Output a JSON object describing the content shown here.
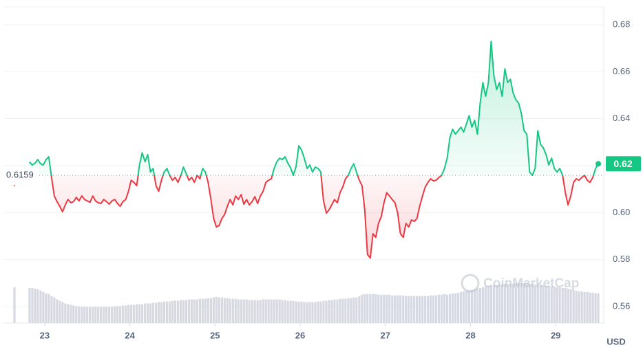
{
  "chart_data": {
    "type": "line",
    "x": [
      22.645,
      null,
      22.823,
      22.855,
      22.887,
      22.919,
      22.952,
      22.984,
      23.016,
      23.048,
      23.081,
      23.113,
      23.145,
      23.177,
      23.21,
      23.242,
      23.274,
      23.307,
      23.339,
      23.371,
      23.403,
      23.436,
      23.468,
      23.5,
      23.532,
      23.565,
      23.597,
      23.629,
      23.661,
      23.694,
      23.726,
      23.758,
      23.79,
      23.823,
      23.855,
      23.887,
      23.919,
      23.952,
      23.984,
      24.016,
      24.048,
      24.081,
      24.113,
      24.145,
      24.178,
      24.21,
      24.242,
      24.274,
      24.307,
      24.339,
      24.371,
      24.403,
      24.436,
      24.468,
      24.5,
      24.532,
      24.565,
      24.597,
      24.629,
      24.661,
      24.694,
      24.726,
      24.758,
      24.79,
      24.823,
      24.855,
      24.887,
      24.919,
      24.952,
      24.984,
      25.016,
      25.048,
      25.081,
      25.113,
      25.145,
      25.177,
      25.21,
      25.242,
      25.274,
      25.307,
      25.339,
      25.371,
      25.403,
      25.436,
      25.468,
      25.5,
      25.532,
      25.565,
      25.597,
      25.629,
      25.661,
      25.694,
      25.726,
      25.758,
      25.79,
      25.823,
      25.855,
      25.887,
      25.919,
      25.952,
      25.984,
      26.016,
      26.048,
      26.081,
      26.113,
      26.145,
      26.177,
      26.21,
      26.242,
      26.274,
      26.307,
      26.339,
      26.371,
      26.403,
      26.436,
      26.468,
      26.5,
      26.532,
      26.565,
      26.597,
      26.629,
      26.661,
      26.694,
      26.726,
      26.758,
      26.79,
      26.823,
      26.855,
      26.887,
      26.919,
      26.952,
      26.984,
      27.016,
      27.048,
      27.081,
      27.113,
      27.145,
      27.177,
      27.21,
      27.242,
      27.274,
      27.307,
      27.339,
      27.371,
      27.403,
      27.436,
      27.468,
      27.5,
      27.532,
      27.565,
      27.597,
      27.629,
      27.661,
      27.694,
      27.726,
      27.758,
      27.79,
      27.823,
      27.855,
      27.887,
      27.919,
      27.952,
      27.984,
      28.016,
      28.048,
      28.081,
      28.113,
      28.145,
      28.177,
      28.21,
      28.242,
      28.274,
      28.307,
      28.339,
      28.371,
      28.403,
      28.436,
      28.468,
      28.5,
      28.532,
      28.565,
      28.597,
      28.629,
      28.661,
      28.694,
      28.726,
      28.758,
      28.79,
      28.823,
      28.855,
      28.887,
      28.919,
      28.952,
      28.984,
      29.016,
      29.048,
      29.081,
      29.113,
      29.145,
      29.177,
      29.21,
      29.242,
      29.274,
      29.307,
      29.339,
      29.371,
      29.403,
      29.436,
      29.468,
      29.5
    ],
    "values": [
      0.6115,
      null,
      0.6214,
      0.6203,
      0.6211,
      0.6226,
      0.6208,
      0.6203,
      0.6226,
      0.6238,
      0.615,
      0.6071,
      0.6047,
      0.6027,
      0.6004,
      0.6033,
      0.6056,
      0.6042,
      0.6047,
      0.6065,
      0.605,
      0.6071,
      0.6056,
      0.605,
      0.6044,
      0.6071,
      0.605,
      0.6042,
      0.6039,
      0.6056,
      0.6047,
      0.6036,
      0.605,
      0.6056,
      0.6039,
      0.6027,
      0.6047,
      0.6056,
      0.6091,
      0.6138,
      0.6129,
      0.6115,
      0.6203,
      0.6255,
      0.6217,
      0.6247,
      0.6173,
      0.6188,
      0.6115,
      0.6091,
      0.6138,
      0.6173,
      0.6188,
      0.6159,
      0.6138,
      0.615,
      0.6129,
      0.6156,
      0.6194,
      0.6167,
      0.6138,
      0.615,
      0.6129,
      0.6159,
      0.6144,
      0.6188,
      0.6173,
      0.6129,
      0.6056,
      0.5975,
      0.5939,
      0.5945,
      0.5975,
      0.5992,
      0.6027,
      0.6056,
      0.6033,
      0.6071,
      0.6056,
      0.6077,
      0.6036,
      0.6056,
      0.6033,
      0.6047,
      0.6068,
      0.6039,
      0.6071,
      0.6091,
      0.6129,
      0.6138,
      0.6144,
      0.6188,
      0.6217,
      0.6232,
      0.6226,
      0.6238,
      0.6211,
      0.6191,
      0.6159,
      0.6197,
      0.6285,
      0.6267,
      0.6232,
      0.6188,
      0.6203,
      0.6173,
      0.6194,
      0.6188,
      0.6173,
      0.605,
      0.5998,
      0.6012,
      0.6033,
      0.6056,
      0.6042,
      0.6085,
      0.6109,
      0.6144,
      0.6159,
      0.6188,
      0.6208,
      0.6173,
      0.6138,
      0.6115,
      0.6012,
      0.5822,
      0.5807,
      0.591,
      0.5895,
      0.5954,
      0.5983,
      0.6042,
      0.6085,
      0.6071,
      0.6056,
      0.6042,
      0.5998,
      0.591,
      0.5895,
      0.5954,
      0.5939,
      0.5969,
      0.5963,
      0.5975,
      0.6027,
      0.6071,
      0.6109,
      0.6129,
      0.6144,
      0.6135,
      0.6138,
      0.615,
      0.6159,
      0.6188,
      0.6232,
      0.632,
      0.6355,
      0.6334,
      0.6349,
      0.6364,
      0.6343,
      0.6378,
      0.6413,
      0.6364,
      0.6393,
      0.6334,
      0.6466,
      0.6554,
      0.6495,
      0.6554,
      0.6729,
      0.6583,
      0.6524,
      0.6554,
      0.6495,
      0.6612,
      0.6554,
      0.6568,
      0.651,
      0.6481,
      0.6466,
      0.6422,
      0.6349,
      0.6334,
      0.6173,
      0.6159,
      0.6188,
      0.6349,
      0.629,
      0.6276,
      0.6247,
      0.6203,
      0.6232,
      0.6188,
      0.6173,
      0.6188,
      0.6159,
      0.6085,
      0.6033,
      0.6071,
      0.6129,
      0.6144,
      0.6138,
      0.615,
      0.6159,
      0.6138,
      0.6129,
      0.615,
      0.6188,
      0.6208
    ],
    "volume": {
      "color": "#d6d9e1",
      "values": [
        53,
        null,
        52,
        52,
        51,
        50,
        48,
        46,
        44,
        43,
        40,
        38,
        35,
        33,
        31,
        29,
        28,
        27,
        26,
        25,
        25,
        24,
        24,
        24,
        24,
        24,
        24,
        24,
        24,
        24,
        24,
        24,
        24,
        25,
        25,
        25,
        26,
        26,
        27,
        27,
        27,
        28,
        28,
        28,
        29,
        29,
        29,
        30,
        30,
        31,
        31,
        32,
        32,
        32,
        33,
        33,
        33,
        34,
        34,
        34,
        35,
        35,
        35,
        35,
        36,
        36,
        36,
        37,
        37,
        38,
        39,
        38,
        38,
        37,
        37,
        36,
        36,
        36,
        35,
        35,
        35,
        35,
        34,
        34,
        34,
        34,
        34,
        35,
        35,
        35,
        35,
        35,
        35,
        35,
        34,
        34,
        33,
        33,
        33,
        32,
        32,
        32,
        31,
        31,
        31,
        31,
        31,
        32,
        32,
        33,
        33,
        34,
        34,
        35,
        35,
        36,
        36,
        36,
        37,
        37,
        38,
        38,
        40,
        42,
        43,
        43,
        43,
        43,
        43,
        42,
        42,
        42,
        42,
        42,
        41,
        41,
        41,
        41,
        41,
        40,
        40,
        40,
        40,
        40,
        40,
        40,
        40,
        40,
        41,
        41,
        41,
        42,
        42,
        43,
        42,
        43,
        44,
        44,
        45,
        46,
        47,
        48,
        48,
        49,
        50,
        51,
        52,
        53,
        54,
        55,
        55,
        56,
        56,
        57,
        57,
        58,
        58,
        58,
        58,
        59,
        59,
        59,
        59,
        59,
        58,
        58,
        57,
        57,
        56,
        56,
        55,
        55,
        54,
        54,
        53,
        53,
        52,
        52,
        51,
        50,
        49,
        48,
        47,
        47,
        46,
        46,
        45,
        45,
        44,
        44
      ]
    },
    "colors": {
      "up": "#16c784",
      "down": "#ea3943"
    },
    "baseline": 0.6159,
    "current_price": {
      "value": 0.6208,
      "label": "0.62"
    },
    "xlim": [
      22.516,
      29.532
    ],
    "xticks": [
      23,
      24,
      25,
      26,
      27,
      28,
      29
    ],
    "ylim": [
      0.553,
      0.6876
    ],
    "yticks": [
      0.56,
      0.58,
      {
        "value": 0.6,
        "label": "0.60"
      },
      0.62,
      0.64,
      0.66,
      0.68
    ],
    "grid": true,
    "currency": "USD",
    "watermark": "CoinMarketCap"
  }
}
